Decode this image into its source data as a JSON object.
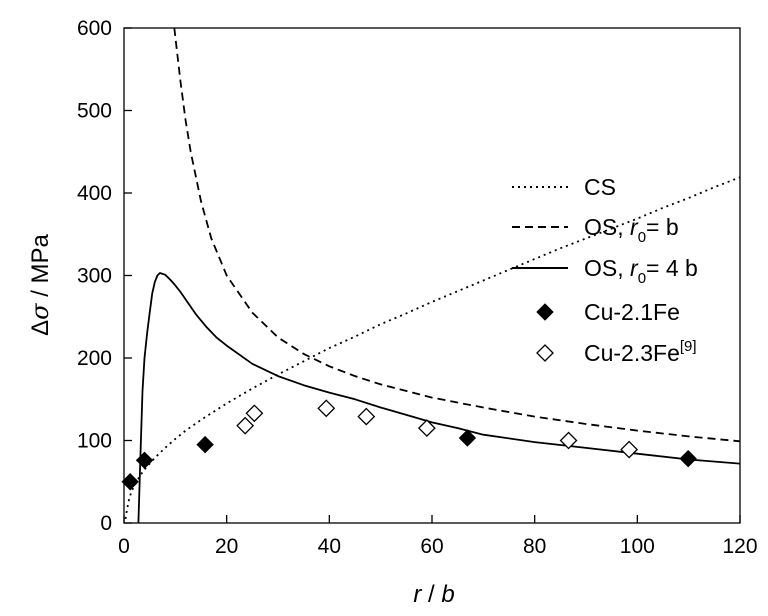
{
  "chart_data": {
    "type": "scatter",
    "title": "",
    "xlabel": {
      "italic": "r",
      "mid": " / ",
      "italic2": "b"
    },
    "ylabel": {
      "delta": "Δ",
      "sigma": "σ",
      "unit": " / MPa"
    },
    "xlim": [
      0,
      120
    ],
    "ylim": [
      0,
      600
    ],
    "xticks": [
      "0",
      "20",
      "40",
      "60",
      "80",
      "100",
      "120"
    ],
    "yticks": [
      "0",
      "100",
      "200",
      "300",
      "400",
      "500",
      "600"
    ],
    "grid": false,
    "legend_position": "right",
    "series": [
      {
        "name": "CS",
        "style": "dotted",
        "points": [
          [
            0.3,
            5
          ],
          [
            0.6,
            17
          ],
          [
            1,
            29
          ],
          [
            1.5,
            39
          ],
          [
            2,
            45
          ],
          [
            3,
            56
          ],
          [
            4,
            65
          ],
          [
            5,
            72
          ],
          [
            6,
            79
          ],
          [
            8,
            91
          ],
          [
            10,
            102
          ],
          [
            12,
            112
          ],
          [
            15,
            125
          ],
          [
            20,
            145
          ],
          [
            25,
            163
          ],
          [
            30,
            180
          ],
          [
            35,
            196
          ],
          [
            40,
            212
          ],
          [
            45,
            226
          ],
          [
            50,
            241
          ],
          [
            55,
            254
          ],
          [
            60,
            268
          ],
          [
            65,
            281
          ],
          [
            70,
            294
          ],
          [
            75,
            307
          ],
          [
            80,
            320
          ],
          [
            85,
            333
          ],
          [
            90,
            345
          ],
          [
            95,
            357
          ],
          [
            100,
            369
          ],
          [
            105,
            382
          ],
          [
            110,
            394
          ],
          [
            115,
            407
          ],
          [
            120,
            419
          ]
        ]
      },
      {
        "name_main": "OS,  ",
        "name_r": "r",
        "name_sub": "0",
        "name_end": "=  b",
        "style": "dashed",
        "points": [
          [
            9.8,
            600
          ],
          [
            11,
            535
          ],
          [
            12,
            488
          ],
          [
            13,
            450
          ],
          [
            15,
            390
          ],
          [
            17,
            345
          ],
          [
            20,
            300
          ],
          [
            25,
            255
          ],
          [
            30,
            225
          ],
          [
            35,
            205
          ],
          [
            40,
            190
          ],
          [
            45,
            178
          ],
          [
            50,
            168
          ],
          [
            60,
            152
          ],
          [
            70,
            140
          ],
          [
            80,
            129
          ],
          [
            90,
            120
          ],
          [
            100,
            112
          ],
          [
            110,
            105
          ],
          [
            120,
            99
          ]
        ]
      },
      {
        "name_main": "OS,  ",
        "name_r": "r",
        "name_sub": "0",
        "name_end": "= 4 b",
        "style": "solid",
        "points": [
          [
            2.8,
            0
          ],
          [
            3.2,
            80
          ],
          [
            3.6,
            160
          ],
          [
            4,
            200
          ],
          [
            4.5,
            230
          ],
          [
            5,
            255
          ],
          [
            5.5,
            278
          ],
          [
            6,
            292
          ],
          [
            6.5,
            300
          ],
          [
            7,
            303
          ],
          [
            8,
            301
          ],
          [
            9,
            295
          ],
          [
            10,
            288
          ],
          [
            11,
            280
          ],
          [
            12,
            271
          ],
          [
            14,
            253
          ],
          [
            16,
            238
          ],
          [
            18,
            225
          ],
          [
            20,
            215
          ],
          [
            25,
            193
          ],
          [
            30,
            178
          ],
          [
            35,
            167
          ],
          [
            40,
            158
          ],
          [
            45,
            150
          ],
          [
            50,
            140
          ],
          [
            55,
            131
          ],
          [
            60,
            122
          ],
          [
            65,
            115
          ],
          [
            70,
            107
          ],
          [
            80,
            98
          ],
          [
            90,
            91
          ],
          [
            100,
            84
          ],
          [
            110,
            77
          ],
          [
            120,
            72
          ]
        ]
      },
      {
        "name": "Cu-2.1Fe",
        "style": "filled-diamond",
        "points": [
          [
            1.2,
            50
          ],
          [
            4,
            76
          ],
          [
            15.8,
            95
          ],
          [
            66.9,
            103
          ],
          [
            109.9,
            78
          ]
        ]
      },
      {
        "name": "Cu-2.3Fe",
        "name_sup": "[9]",
        "style": "open-diamond",
        "points": [
          [
            23.6,
            118
          ],
          [
            25.4,
            133
          ],
          [
            39.4,
            139
          ],
          [
            47.2,
            129
          ],
          [
            59,
            115
          ],
          [
            86.6,
            100
          ],
          [
            98.4,
            89
          ]
        ]
      }
    ]
  }
}
